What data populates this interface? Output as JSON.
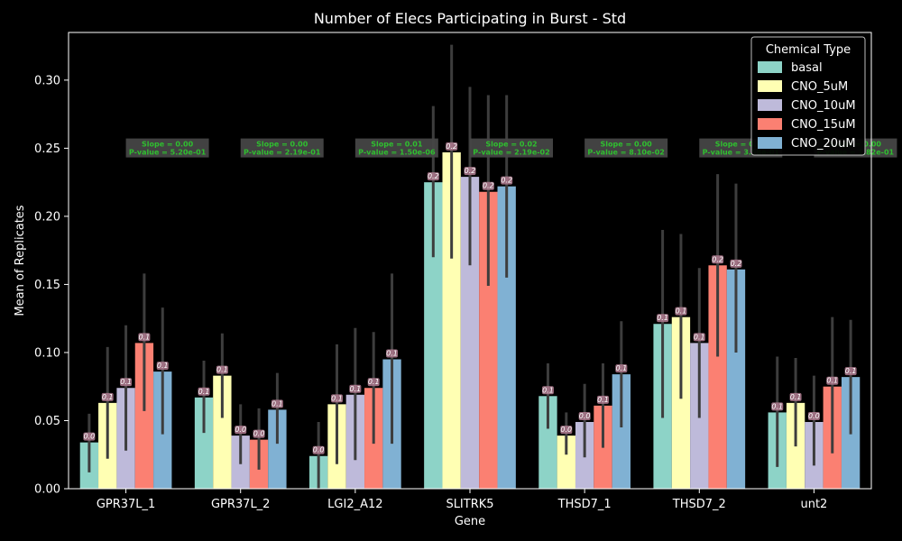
{
  "chart_data": {
    "type": "bar",
    "title": "Number of Elecs Participating in Burst - Std",
    "xlabel": "Gene",
    "ylabel": "Mean of Replicates",
    "ylim": [
      0,
      0.335
    ],
    "yticks": [
      "0.00",
      "0.05",
      "0.10",
      "0.15",
      "0.20",
      "0.25",
      "0.30"
    ],
    "ytick_values": [
      0,
      0.05,
      0.1,
      0.15,
      0.2,
      0.25,
      0.3
    ],
    "categories": [
      "GPR37L_1",
      "GPR37L_2",
      "LGI2_A12",
      "SLITRK5",
      "THSD7_1",
      "THSD7_2",
      "unt2"
    ],
    "legend": {
      "title": "Chemical Type",
      "placement": "top-right"
    },
    "series": [
      {
        "name": "basal",
        "color": "#8dd3c7",
        "values": [
          0.034,
          0.067,
          0.024,
          0.225,
          0.068,
          0.121,
          0.056
        ],
        "err_low": [
          0.012,
          0.041,
          0.0,
          0.17,
          0.044,
          0.052,
          0.016
        ],
        "err_high": [
          0.055,
          0.094,
          0.049,
          0.281,
          0.092,
          0.19,
          0.097
        ],
        "labels": [
          "0.0",
          "0.1",
          "0.0",
          "0.2",
          "0.1",
          "0.1",
          "0.1"
        ]
      },
      {
        "name": "CNO_5uM",
        "color": "#ffffb3",
        "values": [
          0.063,
          0.083,
          0.062,
          0.247,
          0.039,
          0.126,
          0.063
        ],
        "err_low": [
          0.022,
          0.052,
          0.018,
          0.169,
          0.025,
          0.066,
          0.031
        ],
        "err_high": [
          0.104,
          0.114,
          0.106,
          0.326,
          0.056,
          0.187,
          0.096
        ],
        "labels": [
          "0.1",
          "0.1",
          "0.1",
          "0.2",
          "0.0",
          "0.1",
          "0.1"
        ]
      },
      {
        "name": "CNO_10uM",
        "color": "#bebada",
        "values": [
          0.074,
          0.039,
          0.069,
          0.229,
          0.049,
          0.107,
          0.049
        ],
        "err_low": [
          0.028,
          0.018,
          0.021,
          0.164,
          0.023,
          0.052,
          0.017
        ],
        "err_high": [
          0.12,
          0.062,
          0.118,
          0.295,
          0.077,
          0.162,
          0.083
        ],
        "labels": [
          "0.1",
          "0.0",
          "0.1",
          "0.2",
          "0.0",
          "0.1",
          "0.0"
        ]
      },
      {
        "name": "CNO_15uM",
        "color": "#fb8072",
        "values": [
          0.107,
          0.036,
          0.074,
          0.218,
          0.061,
          0.164,
          0.075
        ],
        "err_low": [
          0.057,
          0.014,
          0.033,
          0.149,
          0.03,
          0.097,
          0.026
        ],
        "err_high": [
          0.158,
          0.059,
          0.115,
          0.289,
          0.092,
          0.231,
          0.126
        ],
        "labels": [
          "0.1",
          "0.0",
          "0.1",
          "0.2",
          "0.1",
          "0.2",
          "0.1"
        ]
      },
      {
        "name": "CNO_20uM",
        "color": "#80b1d3",
        "values": [
          0.086,
          0.058,
          0.095,
          0.222,
          0.084,
          0.161,
          0.082
        ],
        "err_low": [
          0.04,
          0.033,
          0.033,
          0.155,
          0.045,
          0.1,
          0.04
        ],
        "err_high": [
          0.133,
          0.085,
          0.158,
          0.289,
          0.123,
          0.224,
          0.124
        ],
        "labels": [
          "0.1",
          "0.1",
          "0.1",
          "0.2",
          "0.1",
          "0.2",
          "0.1"
        ]
      }
    ],
    "stat_annotations": [
      {
        "slope": "Slope = 0.00",
        "pvalue": "P-value = 5.20e-01"
      },
      {
        "slope": "Slope = 0.00",
        "pvalue": "P-value = 2.19e-01"
      },
      {
        "slope": "Slope = 0.01",
        "pvalue": "P-value = 1.50e-06"
      },
      {
        "slope": "Slope = 0.02",
        "pvalue": "P-value = 2.19e-02"
      },
      {
        "slope": "Slope = 0.00",
        "pvalue": "P-value = 8.10e-02"
      },
      {
        "slope": "Slope = 0.02",
        "pvalue": "P-value = 3.58e-01"
      },
      {
        "slope": "Slope = 0.00",
        "pvalue": "P-value = 1.82e-01"
      }
    ],
    "stat_annotation_y": 0.2545,
    "colors": {
      "background": "#000000",
      "axes": "#ffffff",
      "errorbar": "#3d3d3d",
      "stat_box": "#464646",
      "stat_text": "#2fbf2f",
      "bar_label_box": "#b07b90"
    }
  }
}
